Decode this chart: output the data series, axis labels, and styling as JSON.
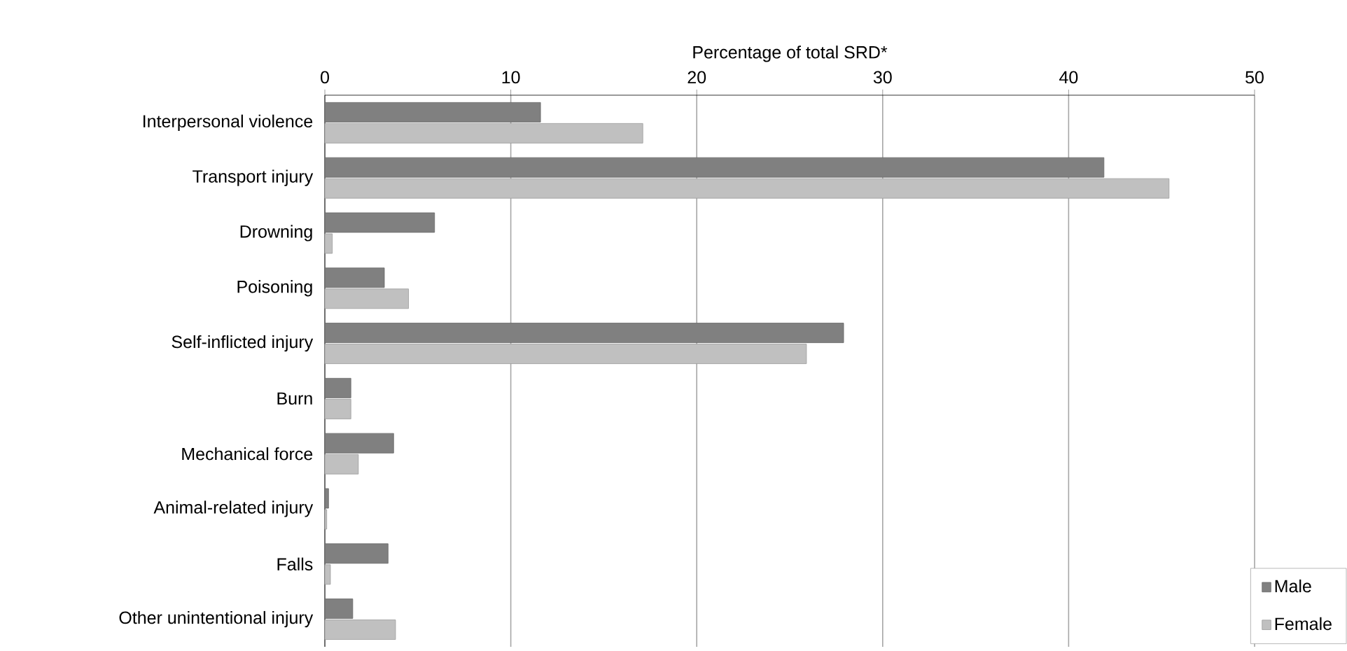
{
  "chart_data": {
    "type": "bar",
    "orientation": "horizontal",
    "xlabel": "Percentage of total SRD*",
    "categories": [
      "Interpersonal violence",
      "Transport injury",
      "Drowning",
      "Poisoning",
      "Self-inflicted injury",
      "Burn",
      "Mechanical force",
      "Animal-related injury",
      "Falls",
      "Other unintentional injury"
    ],
    "series": [
      {
        "name": "Male",
        "color": "#808080",
        "values": [
          11.6,
          41.9,
          5.9,
          3.2,
          27.9,
          1.4,
          3.7,
          0.2,
          3.4,
          1.5
        ]
      },
      {
        "name": "Female",
        "color": "#c0c0c0",
        "values": [
          17.1,
          45.4,
          0.4,
          4.5,
          25.9,
          1.4,
          1.8,
          0.1,
          0.3,
          3.8
        ]
      }
    ],
    "xlim": [
      0,
      50
    ],
    "xticks": [
      0,
      10,
      20,
      30,
      40,
      50
    ],
    "grid": "x",
    "legend": "bottom right"
  }
}
